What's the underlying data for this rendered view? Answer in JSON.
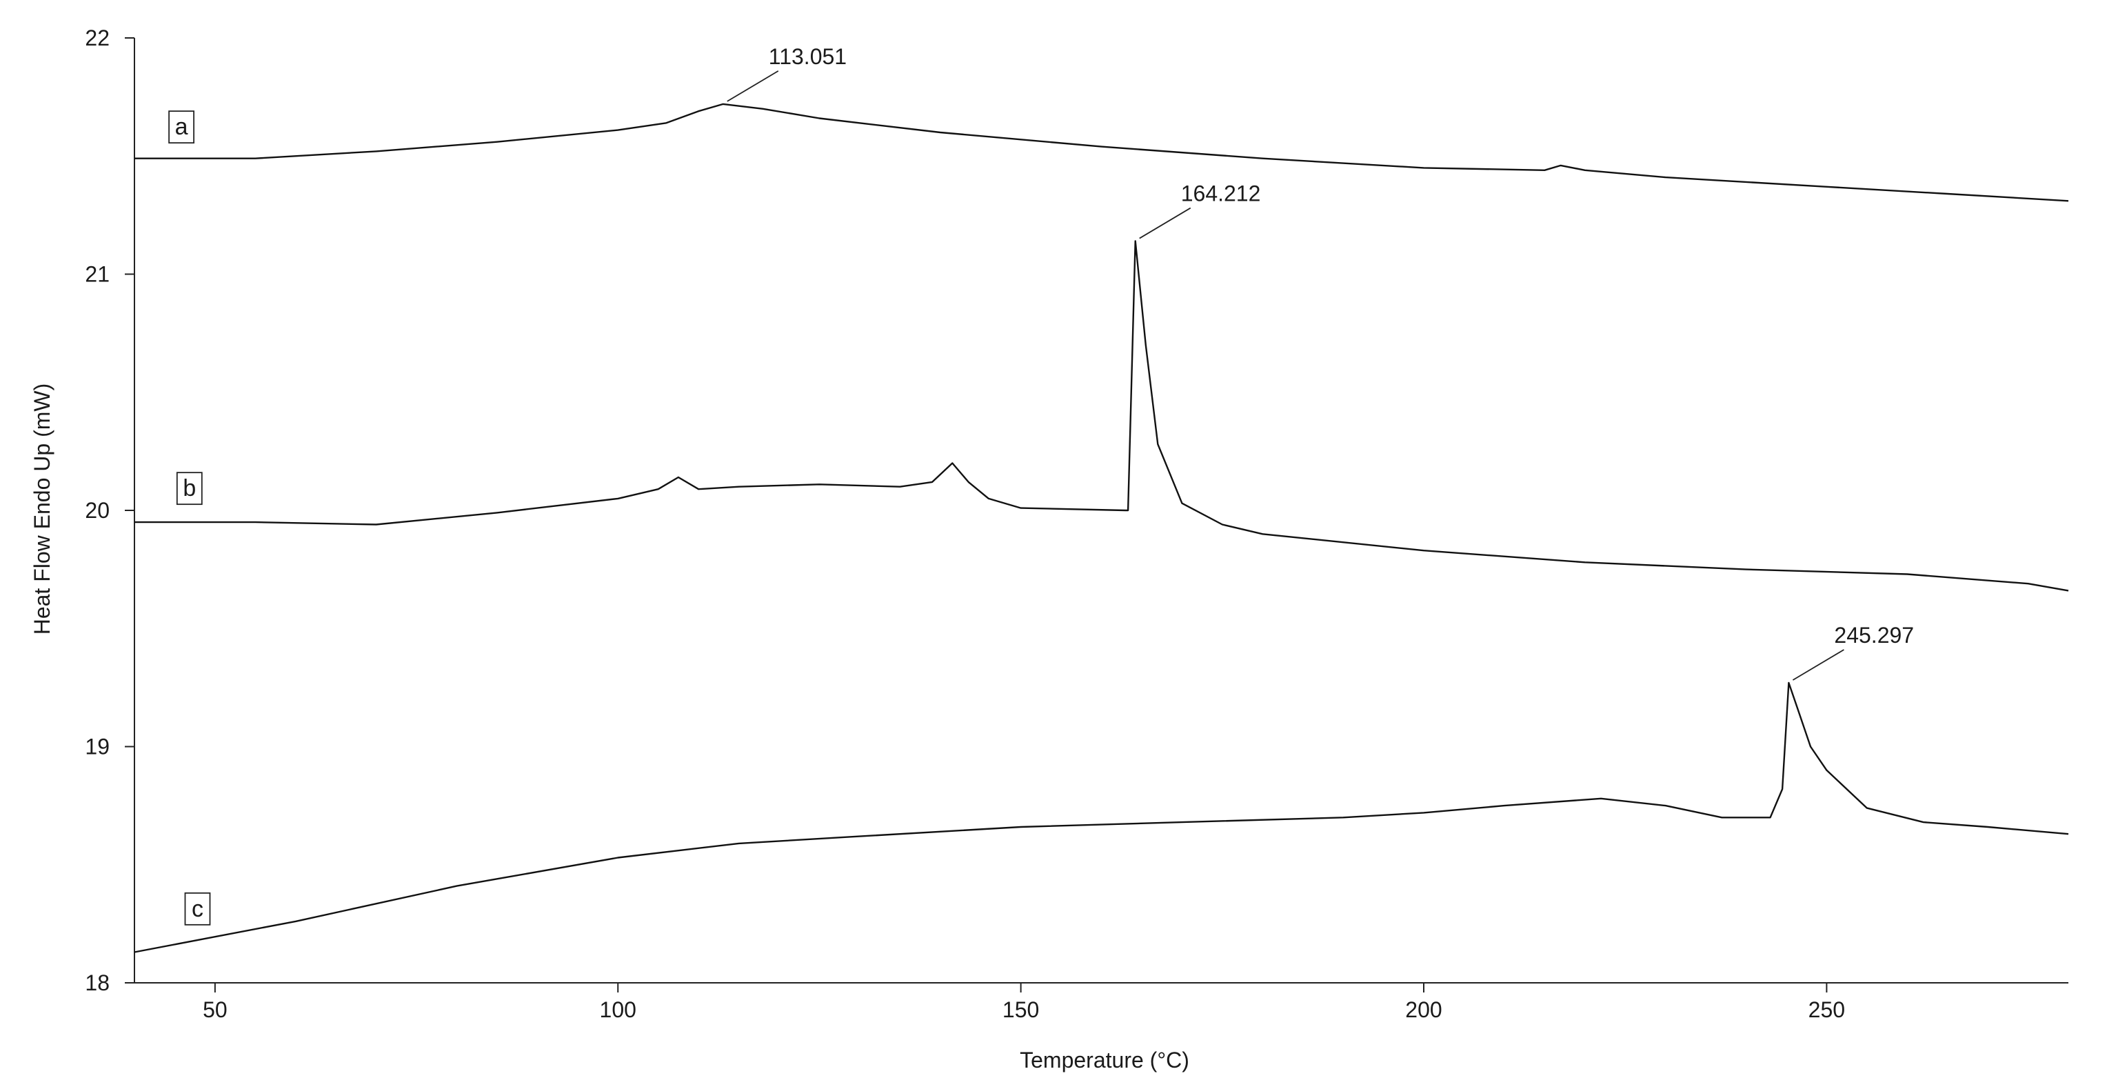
{
  "chart_data": {
    "type": "line",
    "title": "",
    "xlabel": "Temperature (°C)",
    "ylabel": "Heat Flow Endo Up (mW)",
    "xlim": [
      40,
      280
    ],
    "ylim": [
      18,
      22
    ],
    "xticks": [
      50,
      100,
      150,
      200,
      250
    ],
    "xtick_labels": [
      "50",
      "100",
      "150",
      "200",
      "250"
    ],
    "yticks": [
      18,
      19,
      20,
      21,
      22
    ],
    "ytick_labels": [
      "18",
      "19",
      "20",
      "21",
      "22"
    ],
    "grid": false,
    "legend": "none",
    "series": [
      {
        "name": "a",
        "x": [
          40,
          55,
          70,
          85,
          100,
          106,
          110,
          113.051,
          118,
          125,
          140,
          160,
          180,
          200,
          215,
          217,
          220,
          230,
          250,
          265,
          280
        ],
        "y": [
          21.49,
          21.49,
          21.52,
          21.56,
          21.61,
          21.64,
          21.69,
          21.72,
          21.7,
          21.66,
          21.6,
          21.54,
          21.49,
          21.45,
          21.44,
          21.46,
          21.44,
          21.41,
          21.37,
          21.34,
          21.31
        ]
      },
      {
        "name": "b",
        "x": [
          40,
          55,
          70,
          85,
          100,
          105,
          107.5,
          110,
          115,
          125,
          135,
          139,
          141.5,
          143.5,
          146,
          150,
          163,
          163.3,
          164.212,
          165.5,
          167,
          170,
          175,
          180,
          200,
          220,
          240,
          260,
          275,
          280
        ],
        "y": [
          19.95,
          19.95,
          19.94,
          19.99,
          20.05,
          20.09,
          20.14,
          20.09,
          20.1,
          20.11,
          20.1,
          20.12,
          20.2,
          20.12,
          20.05,
          20.01,
          20.0,
          20.0,
          21.14,
          20.7,
          20.28,
          20.03,
          19.94,
          19.9,
          19.83,
          19.78,
          19.75,
          19.73,
          19.69,
          19.66
        ]
      },
      {
        "name": "c",
        "x": [
          40,
          60,
          80,
          100,
          115,
          130,
          150,
          170,
          190,
          200,
          210,
          222,
          230,
          237,
          243,
          244.5,
          245.297,
          246.5,
          248,
          250,
          255,
          262,
          270,
          280
        ],
        "y": [
          18.13,
          18.26,
          18.41,
          18.53,
          18.59,
          18.62,
          18.66,
          18.68,
          18.7,
          18.72,
          18.75,
          18.78,
          18.75,
          18.7,
          18.7,
          18.82,
          19.27,
          19.15,
          19.0,
          18.9,
          18.74,
          18.68,
          18.66,
          18.63
        ]
      }
    ],
    "annotations": [
      {
        "text": "113.051",
        "x": 113.051,
        "y": 21.72
      },
      {
        "text": "164.212",
        "x": 164.212,
        "y": 21.14
      },
      {
        "text": "245.297",
        "x": 245.297,
        "y": 19.27
      }
    ],
    "series_labels": [
      {
        "text": "a",
        "x": 46,
        "y": 21.62
      },
      {
        "text": "b",
        "x": 47,
        "y": 20.09
      },
      {
        "text": "c",
        "x": 48,
        "y": 18.31
      }
    ]
  }
}
